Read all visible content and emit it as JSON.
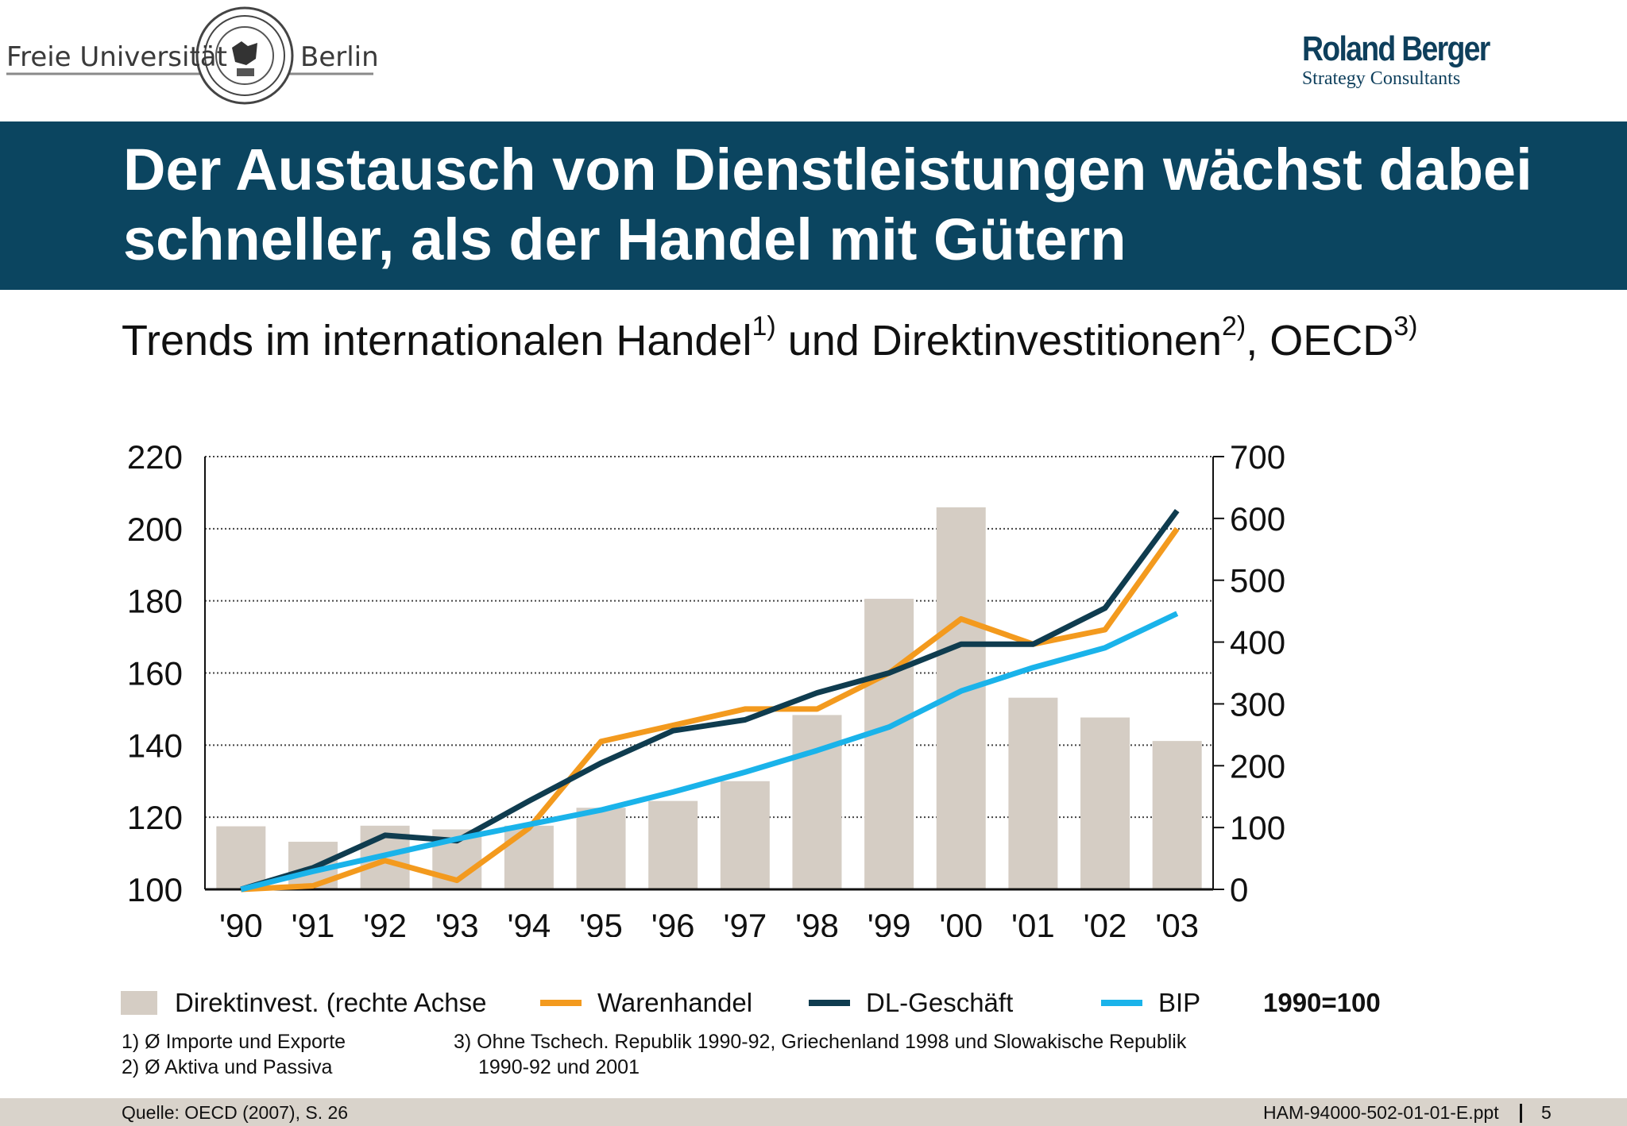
{
  "header": {
    "university_left": "Freie Universität",
    "university_right": "Berlin",
    "consultancy_name": "Roland Berger",
    "consultancy_sub": "Strategy Consultants"
  },
  "title": "Der Austausch von Dienstleistungen wächst dabei schneller, als der Handel mit Gütern",
  "subtitle": {
    "part1": "Trends im internationalen Handel",
    "sup1": "1)",
    "part2": " und Direktinvestitionen",
    "sup2": "2)",
    "part3": ", OECD",
    "sup3": "3)"
  },
  "colors": {
    "title_bar": "#0b4560",
    "bars": "#d5cdc4",
    "warenhandel": "#f39a1e",
    "dl_geschaeft": "#0f3c4f",
    "bip": "#1ab3ea"
  },
  "chart_data": {
    "type": "bar+line",
    "categories": [
      "'90",
      "'91",
      "'92",
      "'93",
      "'94",
      "'95",
      "'96",
      "'97",
      "'98",
      "'99",
      "'00",
      "'01",
      "'02",
      "'03"
    ],
    "left_axis": {
      "ylim": [
        100,
        220
      ],
      "ticks": [
        "100",
        "120",
        "140",
        "160",
        "180",
        "200",
        "220"
      ]
    },
    "right_axis": {
      "ylim": [
        0,
        700
      ],
      "ticks": [
        "0",
        "100",
        "200",
        "300",
        "400",
        "500",
        "600",
        "700"
      ]
    },
    "grid": "dotted horizontal",
    "bars": {
      "name": "Direktinvest. (rechte Achse",
      "axis": "right",
      "values": [
        102,
        77,
        103,
        97,
        103,
        132,
        143,
        175,
        282,
        470,
        618,
        310,
        278,
        240
      ]
    },
    "series": [
      {
        "name": "Warenhandel",
        "axis": "left",
        "values": [
          100,
          101,
          108,
          102.5,
          117,
          141,
          145.5,
          150,
          150,
          160,
          175,
          168,
          172,
          200
        ]
      },
      {
        "name": "DL-Geschäft",
        "axis": "left",
        "values": [
          100,
          106,
          115,
          113.5,
          124.5,
          135,
          144,
          147,
          154.5,
          160,
          168,
          168,
          178,
          205
        ]
      },
      {
        "name": "BIP",
        "axis": "left",
        "values": [
          100,
          105,
          109.5,
          114,
          118,
          122,
          127,
          132.5,
          138.5,
          145,
          155,
          161.5,
          167,
          176.5
        ]
      }
    ]
  },
  "legend": {
    "bars": "Direktinvest. (rechte Achse",
    "warenhandel": "Warenhandel",
    "dl": "DL-Geschäft",
    "bip": "BIP",
    "base": "1990=100"
  },
  "notes": {
    "n1": "1) Ø Importe und Exporte",
    "n2": "2) Ø Aktiva und Passiva",
    "n3a": "3) Ohne Tschech. Republik 1990-92, Griechenland 1998 und Slowakische Republik",
    "n3b": "1990-92 und 2001"
  },
  "footer": {
    "source": "Quelle: OECD (2007), S. 26",
    "file": "HAM-94000-502-01-01-E.ppt",
    "page": "5"
  }
}
